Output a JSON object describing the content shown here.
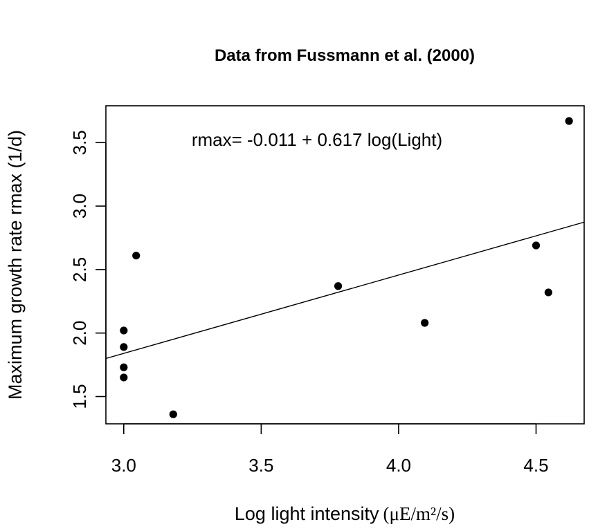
{
  "chart_data": {
    "type": "scatter",
    "title": "Data from Fussmann et al. (2000)",
    "xlabel": "Log light intensity",
    "xlabel_units": "(μE/m²/s)",
    "ylabel": "Maximum growth rate rmax (1/d)",
    "xlim": [
      2.935,
      4.675
    ],
    "ylim": [
      1.285,
      3.79
    ],
    "xticks": [
      3.0,
      3.5,
      4.0,
      4.5
    ],
    "xtick_labels": [
      "3.0",
      "3.5",
      "4.0",
      "4.5"
    ],
    "yticks": [
      1.5,
      2.0,
      2.5,
      3.0,
      3.5
    ],
    "ytick_labels": [
      "1.5",
      "2.0",
      "2.5",
      "3.0",
      "3.5"
    ],
    "grid": false,
    "points": [
      {
        "x": 3.0,
        "y": 1.65
      },
      {
        "x": 3.0,
        "y": 1.73
      },
      {
        "x": 3.0,
        "y": 1.89
      },
      {
        "x": 3.0,
        "y": 2.02
      },
      {
        "x": 3.045,
        "y": 2.61
      },
      {
        "x": 3.18,
        "y": 1.36
      },
      {
        "x": 3.78,
        "y": 2.37
      },
      {
        "x": 4.095,
        "y": 2.08
      },
      {
        "x": 4.5,
        "y": 2.69
      },
      {
        "x": 4.545,
        "y": 2.32
      },
      {
        "x": 4.62,
        "y": 3.67
      }
    ],
    "fit_line": {
      "intercept": -0.011,
      "slope": 0.617
    },
    "annotation": "rmax= -0.011 + 0.617 log(Light)"
  }
}
